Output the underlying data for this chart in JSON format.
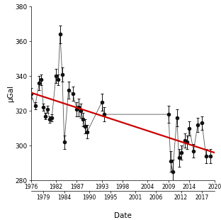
{
  "x_data": [
    1976.0,
    1977.0,
    1978.0,
    1978.5,
    1979.0,
    1979.5,
    1980.0,
    1980.5,
    1981.0,
    1982.0,
    1982.5,
    1983.0,
    1983.5,
    1984.0,
    1985.0,
    1986.0,
    1987.0,
    1987.5,
    1988.0,
    1988.5,
    1989.0,
    1989.5,
    1993.0,
    1993.5,
    2009.0,
    2009.5,
    2010.0,
    2011.0,
    2011.5,
    2012.0,
    2013.0,
    2013.5,
    2014.0,
    2015.0,
    2016.0,
    2017.0,
    2018.0,
    2019.0
  ],
  "y_data": [
    330,
    323,
    336,
    338,
    322,
    317,
    321,
    315,
    316,
    340,
    338,
    364,
    341,
    302,
    332,
    330,
    321,
    322,
    320,
    315,
    311,
    308,
    325,
    318,
    318,
    291,
    285,
    316,
    293,
    296,
    303,
    302,
    310,
    297,
    312,
    313,
    294,
    294
  ],
  "y_err": [
    3,
    2,
    4,
    3,
    2,
    2,
    2,
    2,
    2,
    4,
    3,
    5,
    4,
    4,
    5,
    4,
    4,
    5,
    4,
    4,
    4,
    4,
    5,
    4,
    5,
    6,
    7,
    5,
    5,
    4,
    4,
    4,
    4,
    4,
    4,
    4,
    4,
    4
  ],
  "trend_x": [
    1976,
    2020
  ],
  "trend_y": [
    330.5,
    296.0
  ],
  "ylim": [
    280,
    380
  ],
  "xlim": [
    1976,
    2020
  ],
  "yticks": [
    280,
    300,
    320,
    340,
    360,
    380
  ],
  "xticks_row1": [
    1976,
    1982,
    1987,
    1993,
    1998,
    2004,
    2009,
    2014,
    2020
  ],
  "xticks_row2": [
    1979,
    1984,
    1990,
    1995,
    2001,
    2006,
    2012,
    2017
  ],
  "ylabel": "μGal",
  "xlabel": "Date",
  "line_color": "#555555",
  "marker_color": "#111111",
  "trend_color": "#cc0000",
  "bg_color": "#ffffff"
}
